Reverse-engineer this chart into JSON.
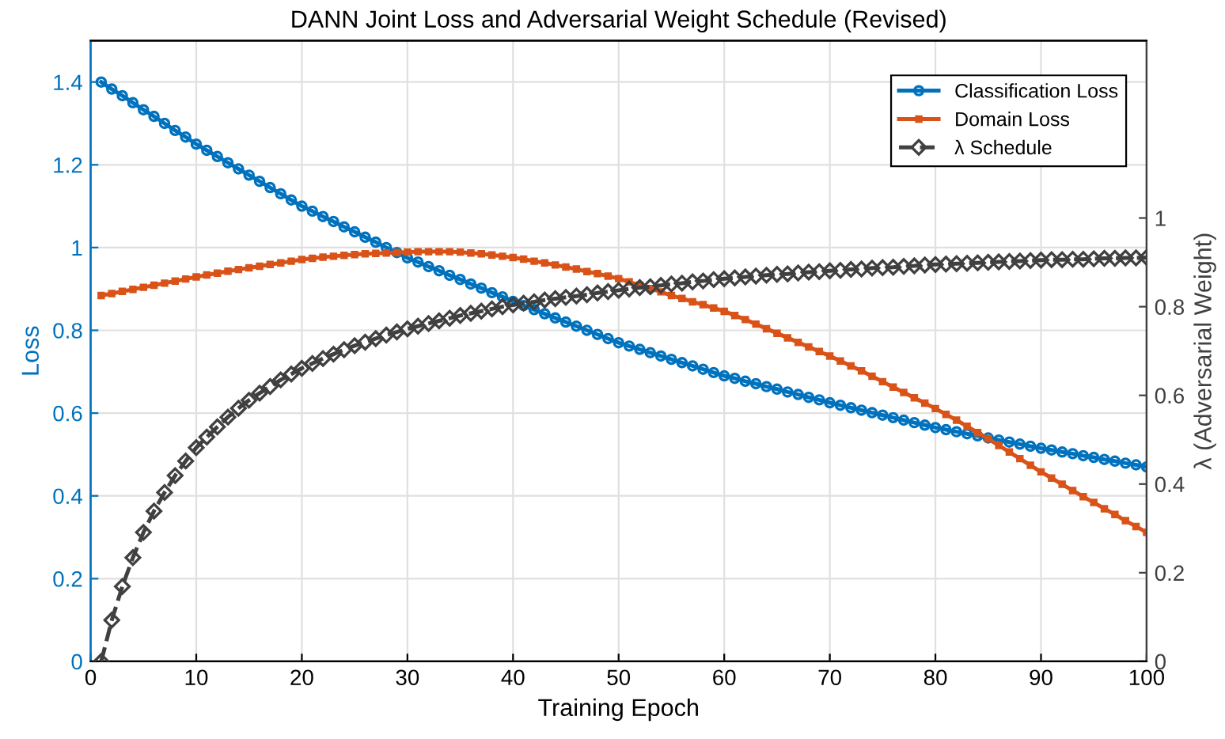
{
  "chart_data": {
    "type": "line",
    "title": "DANN Joint Loss and Adversarial Weight Schedule (Revised)",
    "xlabel": "Training Epoch",
    "ylabel": "Loss",
    "y2label": "λ (Adversarial Weight)",
    "x": [
      1,
      2,
      3,
      4,
      5,
      6,
      7,
      8,
      9,
      10,
      11,
      12,
      13,
      14,
      15,
      16,
      17,
      18,
      19,
      20,
      21,
      22,
      23,
      24,
      25,
      26,
      27,
      28,
      29,
      30,
      31,
      32,
      33,
      34,
      35,
      36,
      37,
      38,
      39,
      40,
      41,
      42,
      43,
      44,
      45,
      46,
      47,
      48,
      49,
      50,
      51,
      52,
      53,
      54,
      55,
      56,
      57,
      58,
      59,
      60,
      61,
      62,
      63,
      64,
      65,
      66,
      67,
      68,
      69,
      70,
      71,
      72,
      73,
      74,
      75,
      76,
      77,
      78,
      79,
      80,
      81,
      82,
      83,
      84,
      85,
      86,
      87,
      88,
      89,
      90,
      91,
      92,
      93,
      94,
      95,
      96,
      97,
      98,
      99,
      100
    ],
    "series": [
      {
        "name": "Classification Loss",
        "color": "#0072bd",
        "marker": "circle",
        "line_style": "solid",
        "axis": "y",
        "values": [
          1.4,
          1.383,
          1.367,
          1.35,
          1.333,
          1.317,
          1.3,
          1.283,
          1.267,
          1.25,
          1.235,
          1.22,
          1.205,
          1.19,
          1.175,
          1.16,
          1.145,
          1.13,
          1.115,
          1.1,
          1.088,
          1.075,
          1.063,
          1.05,
          1.038,
          1.025,
          1.013,
          1.0,
          0.988,
          0.975,
          0.965,
          0.954,
          0.944,
          0.933,
          0.923,
          0.912,
          0.902,
          0.891,
          0.881,
          0.87,
          0.86,
          0.85,
          0.84,
          0.83,
          0.82,
          0.81,
          0.8,
          0.79,
          0.78,
          0.77,
          0.762,
          0.754,
          0.746,
          0.738,
          0.73,
          0.722,
          0.714,
          0.706,
          0.698,
          0.69,
          0.684,
          0.677,
          0.671,
          0.664,
          0.658,
          0.651,
          0.645,
          0.638,
          0.632,
          0.625,
          0.619,
          0.613,
          0.607,
          0.601,
          0.595,
          0.589,
          0.583,
          0.577,
          0.571,
          0.565,
          0.56,
          0.555,
          0.55,
          0.545,
          0.54,
          0.535,
          0.53,
          0.525,
          0.52,
          0.515,
          0.511,
          0.506,
          0.502,
          0.497,
          0.493,
          0.488,
          0.484,
          0.479,
          0.475,
          0.47
        ]
      },
      {
        "name": "Domain Loss",
        "color": "#d95319",
        "marker": "square",
        "line_style": "solid",
        "axis": "y",
        "values": [
          0.884,
          0.889,
          0.894,
          0.899,
          0.904,
          0.909,
          0.914,
          0.919,
          0.924,
          0.929,
          0.934,
          0.938,
          0.943,
          0.947,
          0.951,
          0.955,
          0.959,
          0.963,
          0.967,
          0.971,
          0.974,
          0.977,
          0.979,
          0.981,
          0.983,
          0.985,
          0.986,
          0.987,
          0.988,
          0.989,
          0.99,
          0.99,
          0.99,
          0.99,
          0.989,
          0.987,
          0.985,
          0.982,
          0.979,
          0.976,
          0.972,
          0.967,
          0.963,
          0.958,
          0.953,
          0.948,
          0.942,
          0.937,
          0.931,
          0.925,
          0.917,
          0.909,
          0.901,
          0.893,
          0.884,
          0.877,
          0.869,
          0.862,
          0.854,
          0.846,
          0.836,
          0.826,
          0.815,
          0.804,
          0.793,
          0.782,
          0.771,
          0.76,
          0.749,
          0.738,
          0.726,
          0.714,
          0.702,
          0.689,
          0.676,
          0.663,
          0.65,
          0.637,
          0.624,
          0.611,
          0.597,
          0.583,
          0.568,
          0.553,
          0.538,
          0.522,
          0.506,
          0.49,
          0.474,
          0.458,
          0.443,
          0.428,
          0.413,
          0.398,
          0.384,
          0.369,
          0.355,
          0.34,
          0.326,
          0.312
        ]
      },
      {
        "name": "λ Schedule",
        "color": "#404040",
        "marker": "diamond",
        "line_style": "dashed",
        "axis": "y2",
        "values": [
          0,
          0.093,
          0.169,
          0.234,
          0.291,
          0.339,
          0.381,
          0.419,
          0.452,
          0.482,
          0.506,
          0.529,
          0.551,
          0.571,
          0.589,
          0.605,
          0.62,
          0.635,
          0.648,
          0.661,
          0.672,
          0.683,
          0.693,
          0.703,
          0.712,
          0.72,
          0.728,
          0.736,
          0.743,
          0.75,
          0.756,
          0.762,
          0.768,
          0.774,
          0.78,
          0.785,
          0.79,
          0.795,
          0.8,
          0.804,
          0.808,
          0.811,
          0.815,
          0.818,
          0.821,
          0.824,
          0.827,
          0.831,
          0.834,
          0.837,
          0.84,
          0.843,
          0.845,
          0.848,
          0.851,
          0.853,
          0.856,
          0.858,
          0.861,
          0.863,
          0.865,
          0.867,
          0.869,
          0.871,
          0.873,
          0.874,
          0.876,
          0.878,
          0.879,
          0.881,
          0.882,
          0.884,
          0.885,
          0.887,
          0.888,
          0.889,
          0.891,
          0.892,
          0.894,
          0.895,
          0.896,
          0.897,
          0.898,
          0.899,
          0.9,
          0.901,
          0.902,
          0.903,
          0.904,
          0.905,
          0.906,
          0.906,
          0.907,
          0.907,
          0.908,
          0.909,
          0.909,
          0.91,
          0.91,
          0.911
        ]
      }
    ],
    "xlim": [
      0,
      100
    ],
    "xticks": [
      0,
      10,
      20,
      30,
      40,
      50,
      60,
      70,
      80,
      90,
      100
    ],
    "ylim": [
      0,
      1.5
    ],
    "yticks": [
      0,
      0.2,
      0.4,
      0.6,
      0.8,
      1,
      1.2,
      1.4
    ],
    "y2lim": [
      0,
      1.4
    ],
    "y2ticks": [
      0,
      0.2,
      0.4,
      0.6,
      0.8,
      1
    ],
    "grid": true,
    "legend": "top right"
  }
}
